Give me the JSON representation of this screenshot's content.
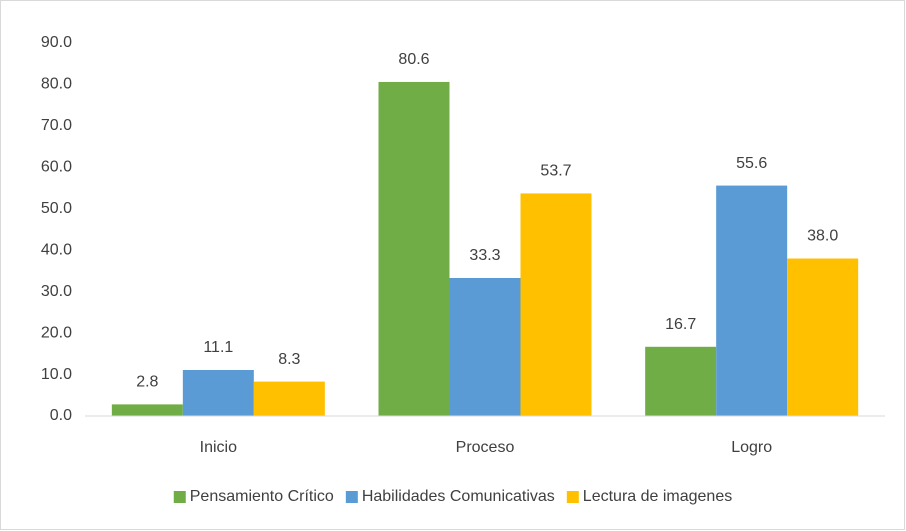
{
  "chart_data": {
    "type": "bar",
    "categories": [
      "Inicio",
      "Proceso",
      "Logro"
    ],
    "series": [
      {
        "name": "Pensamiento Crítico",
        "color": "#70ad47",
        "values": [
          2.8,
          80.6,
          16.7
        ],
        "value_labels": [
          "2.8",
          "80.6",
          "16.7"
        ]
      },
      {
        "name": "Habilidades Comunicativas",
        "color": "#5b9bd5",
        "values": [
          11.1,
          33.3,
          55.6
        ],
        "value_labels": [
          "11.1",
          "33.3",
          "55.6"
        ]
      },
      {
        "name": "Lectura de imagenes",
        "color": "#ffc000",
        "values": [
          8.3,
          53.7,
          38
        ],
        "value_labels": [
          "8.3",
          "53.7",
          "38.0"
        ]
      }
    ],
    "ylim": [
      0,
      90
    ],
    "yticks": [
      {
        "value": 0,
        "label": "0.0"
      },
      {
        "value": 10,
        "label": "10.0"
      },
      {
        "value": 20,
        "label": "20.0"
      },
      {
        "value": 30,
        "label": "30.0"
      },
      {
        "value": 40,
        "label": "40.0"
      },
      {
        "value": 50,
        "label": "50.0"
      },
      {
        "value": 60,
        "label": "60.0"
      },
      {
        "value": 70,
        "label": "70.0"
      },
      {
        "value": 80,
        "label": "80.0"
      },
      {
        "value": 90,
        "label": "90.0"
      }
    ],
    "grid": false,
    "legend": "bottom"
  }
}
